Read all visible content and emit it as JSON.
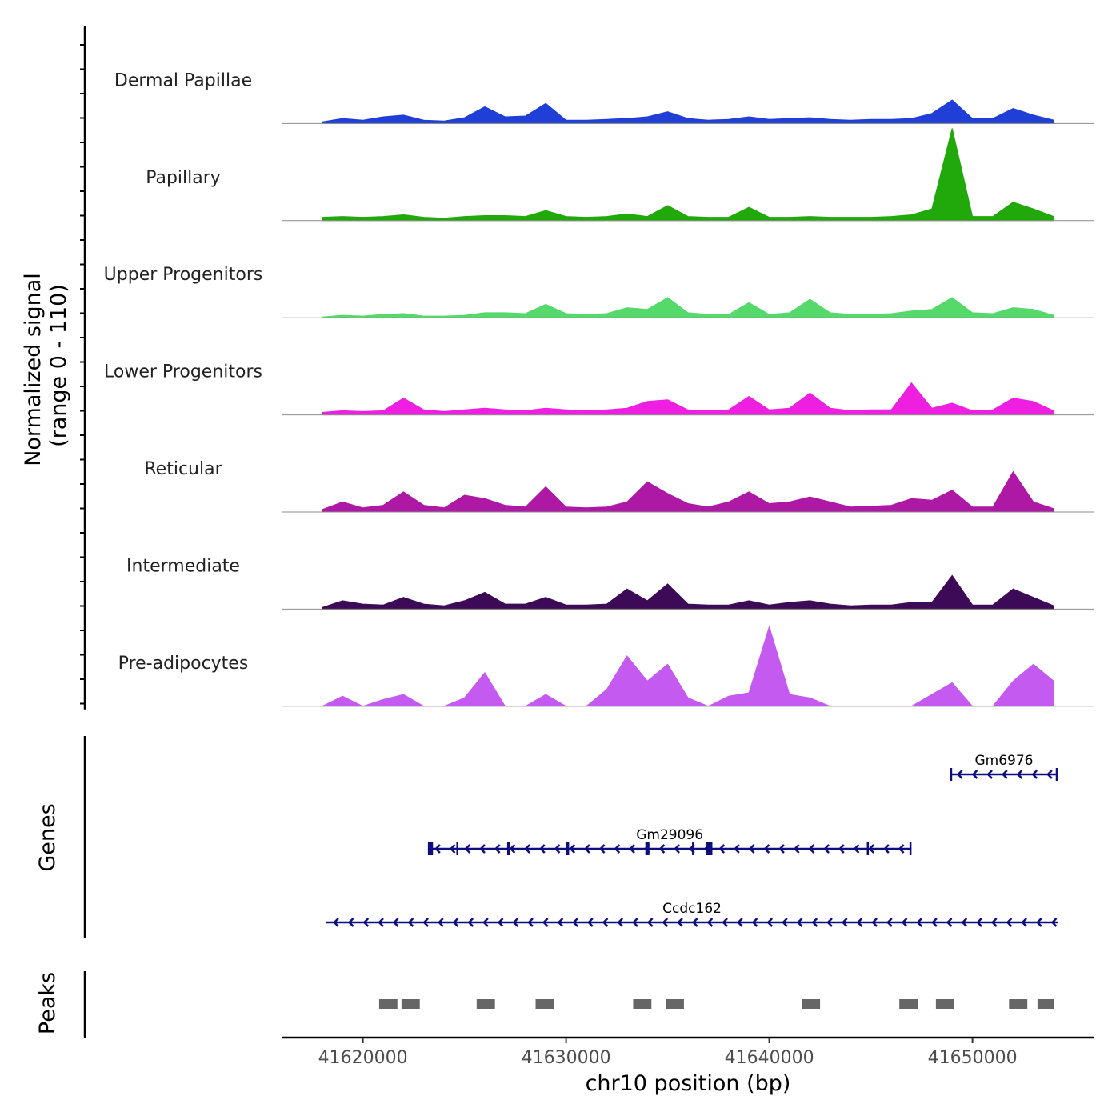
{
  "chart_data": {
    "type": "area",
    "title": "",
    "ylabel": "Normalized signal",
    "ylabel_range": "(range 0 - 110)",
    "ylim": [
      0,
      110
    ],
    "xlabel": "chr10 position (bp)",
    "xlim": [
      41616000,
      41656000
    ],
    "x_ticks": [
      41620000,
      41630000,
      41640000,
      41650000
    ],
    "x_tick_labels": [
      "41620000",
      "41630000",
      "41640000",
      "41650000"
    ],
    "positions": [
      41618000,
      41619000,
      41620000,
      41621000,
      41622000,
      41623000,
      41624000,
      41625000,
      41626000,
      41627000,
      41628000,
      41629000,
      41630000,
      41631000,
      41632000,
      41633000,
      41634000,
      41635000,
      41636000,
      41637000,
      41638000,
      41639000,
      41640000,
      41641000,
      41642000,
      41643000,
      41644000,
      41645000,
      41646000,
      41647000,
      41648000,
      41649000,
      41650000,
      41651000,
      41652000,
      41653000,
      41654000
    ],
    "series": [
      {
        "name": "Dermal Papillae",
        "color": "#1f3fd6",
        "values": [
          2,
          6,
          4,
          8,
          10,
          4,
          3,
          7,
          20,
          8,
          9,
          24,
          4,
          4,
          5,
          6,
          8,
          14,
          6,
          4,
          5,
          8,
          5,
          6,
          7,
          5,
          4,
          5,
          5,
          6,
          12,
          28,
          6,
          6,
          18,
          10,
          4
        ]
      },
      {
        "name": "Papillary",
        "color": "#21a80b",
        "values": [
          4,
          5,
          4,
          5,
          7,
          4,
          3,
          5,
          6,
          6,
          5,
          12,
          5,
          4,
          5,
          8,
          5,
          18,
          5,
          4,
          4,
          16,
          4,
          4,
          5,
          4,
          4,
          4,
          5,
          7,
          14,
          110,
          5,
          5,
          22,
          14,
          5
        ]
      },
      {
        "name": "Upper Progenitors",
        "color": "#55d96a",
        "values": [
          1,
          3,
          2,
          4,
          5,
          2,
          2,
          3,
          6,
          6,
          5,
          16,
          5,
          4,
          5,
          12,
          10,
          24,
          6,
          4,
          4,
          18,
          4,
          6,
          22,
          6,
          4,
          4,
          5,
          8,
          10,
          24,
          6,
          5,
          12,
          10,
          3
        ]
      },
      {
        "name": "Lower Progenitors",
        "color": "#ee1fe0",
        "values": [
          3,
          5,
          4,
          5,
          20,
          6,
          4,
          6,
          8,
          6,
          5,
          8,
          6,
          5,
          6,
          8,
          16,
          18,
          6,
          5,
          6,
          22,
          6,
          8,
          26,
          8,
          5,
          6,
          6,
          38,
          8,
          14,
          5,
          6,
          20,
          16,
          5
        ]
      },
      {
        "name": "Reticular",
        "color": "#ad18a4",
        "values": [
          3,
          12,
          5,
          8,
          24,
          8,
          5,
          20,
          16,
          8,
          6,
          30,
          6,
          5,
          6,
          12,
          36,
          22,
          10,
          6,
          12,
          24,
          10,
          12,
          18,
          12,
          6,
          7,
          8,
          16,
          14,
          26,
          6,
          6,
          48,
          12,
          4
        ]
      },
      {
        "name": "Intermediate",
        "color": "#3c0a56",
        "values": [
          2,
          10,
          6,
          5,
          14,
          6,
          4,
          10,
          20,
          6,
          6,
          14,
          5,
          5,
          6,
          24,
          10,
          30,
          6,
          5,
          5,
          10,
          5,
          8,
          10,
          6,
          4,
          5,
          5,
          8,
          8,
          40,
          5,
          5,
          24,
          14,
          4
        ]
      },
      {
        "name": "Pre-adipocytes",
        "color": "#c55af0",
        "values": [
          0,
          12,
          0,
          8,
          14,
          0,
          0,
          10,
          40,
          0,
          0,
          14,
          0,
          0,
          20,
          60,
          30,
          50,
          10,
          0,
          12,
          16,
          95,
          14,
          10,
          0,
          0,
          0,
          0,
          0,
          14,
          28,
          0,
          0,
          30,
          50,
          30
        ]
      }
    ],
    "genes_track": {
      "title": "Genes",
      "color": "#0d0d80",
      "strand": "-",
      "genes": [
        {
          "name": "Gm6976",
          "start": 41648900,
          "end": 41654200,
          "exons": [
            [
              41648900,
              41649000
            ],
            [
              41654100,
              41654200
            ]
          ]
        },
        {
          "name": "Gm29096",
          "start": 41623200,
          "end": 41647000,
          "exons": [
            [
              41623200,
              41623450
            ],
            [
              41624600,
              41624700
            ],
            [
              41627100,
              41627250
            ],
            [
              41630000,
              41630150
            ],
            [
              41633900,
              41634100
            ],
            [
              41636200,
              41636300
            ],
            [
              41636900,
              41637200
            ],
            [
              41644800,
              41644900
            ],
            [
              41646900,
              41647000
            ]
          ]
        },
        {
          "name": "Ccdc162",
          "start": 41618200,
          "end": 41654200,
          "exons": []
        }
      ]
    },
    "peaks_track": {
      "title": "Peaks",
      "color": "#666666",
      "peaks": [
        [
          41620800,
          41621700
        ],
        [
          41621900,
          41622800
        ],
        [
          41625600,
          41626500
        ],
        [
          41628500,
          41629400
        ],
        [
          41633300,
          41634200
        ],
        [
          41634900,
          41635800
        ],
        [
          41641600,
          41642500
        ],
        [
          41646400,
          41647300
        ],
        [
          41648200,
          41649100
        ],
        [
          41651800,
          41652700
        ],
        [
          41653200,
          41654000
        ]
      ]
    }
  }
}
